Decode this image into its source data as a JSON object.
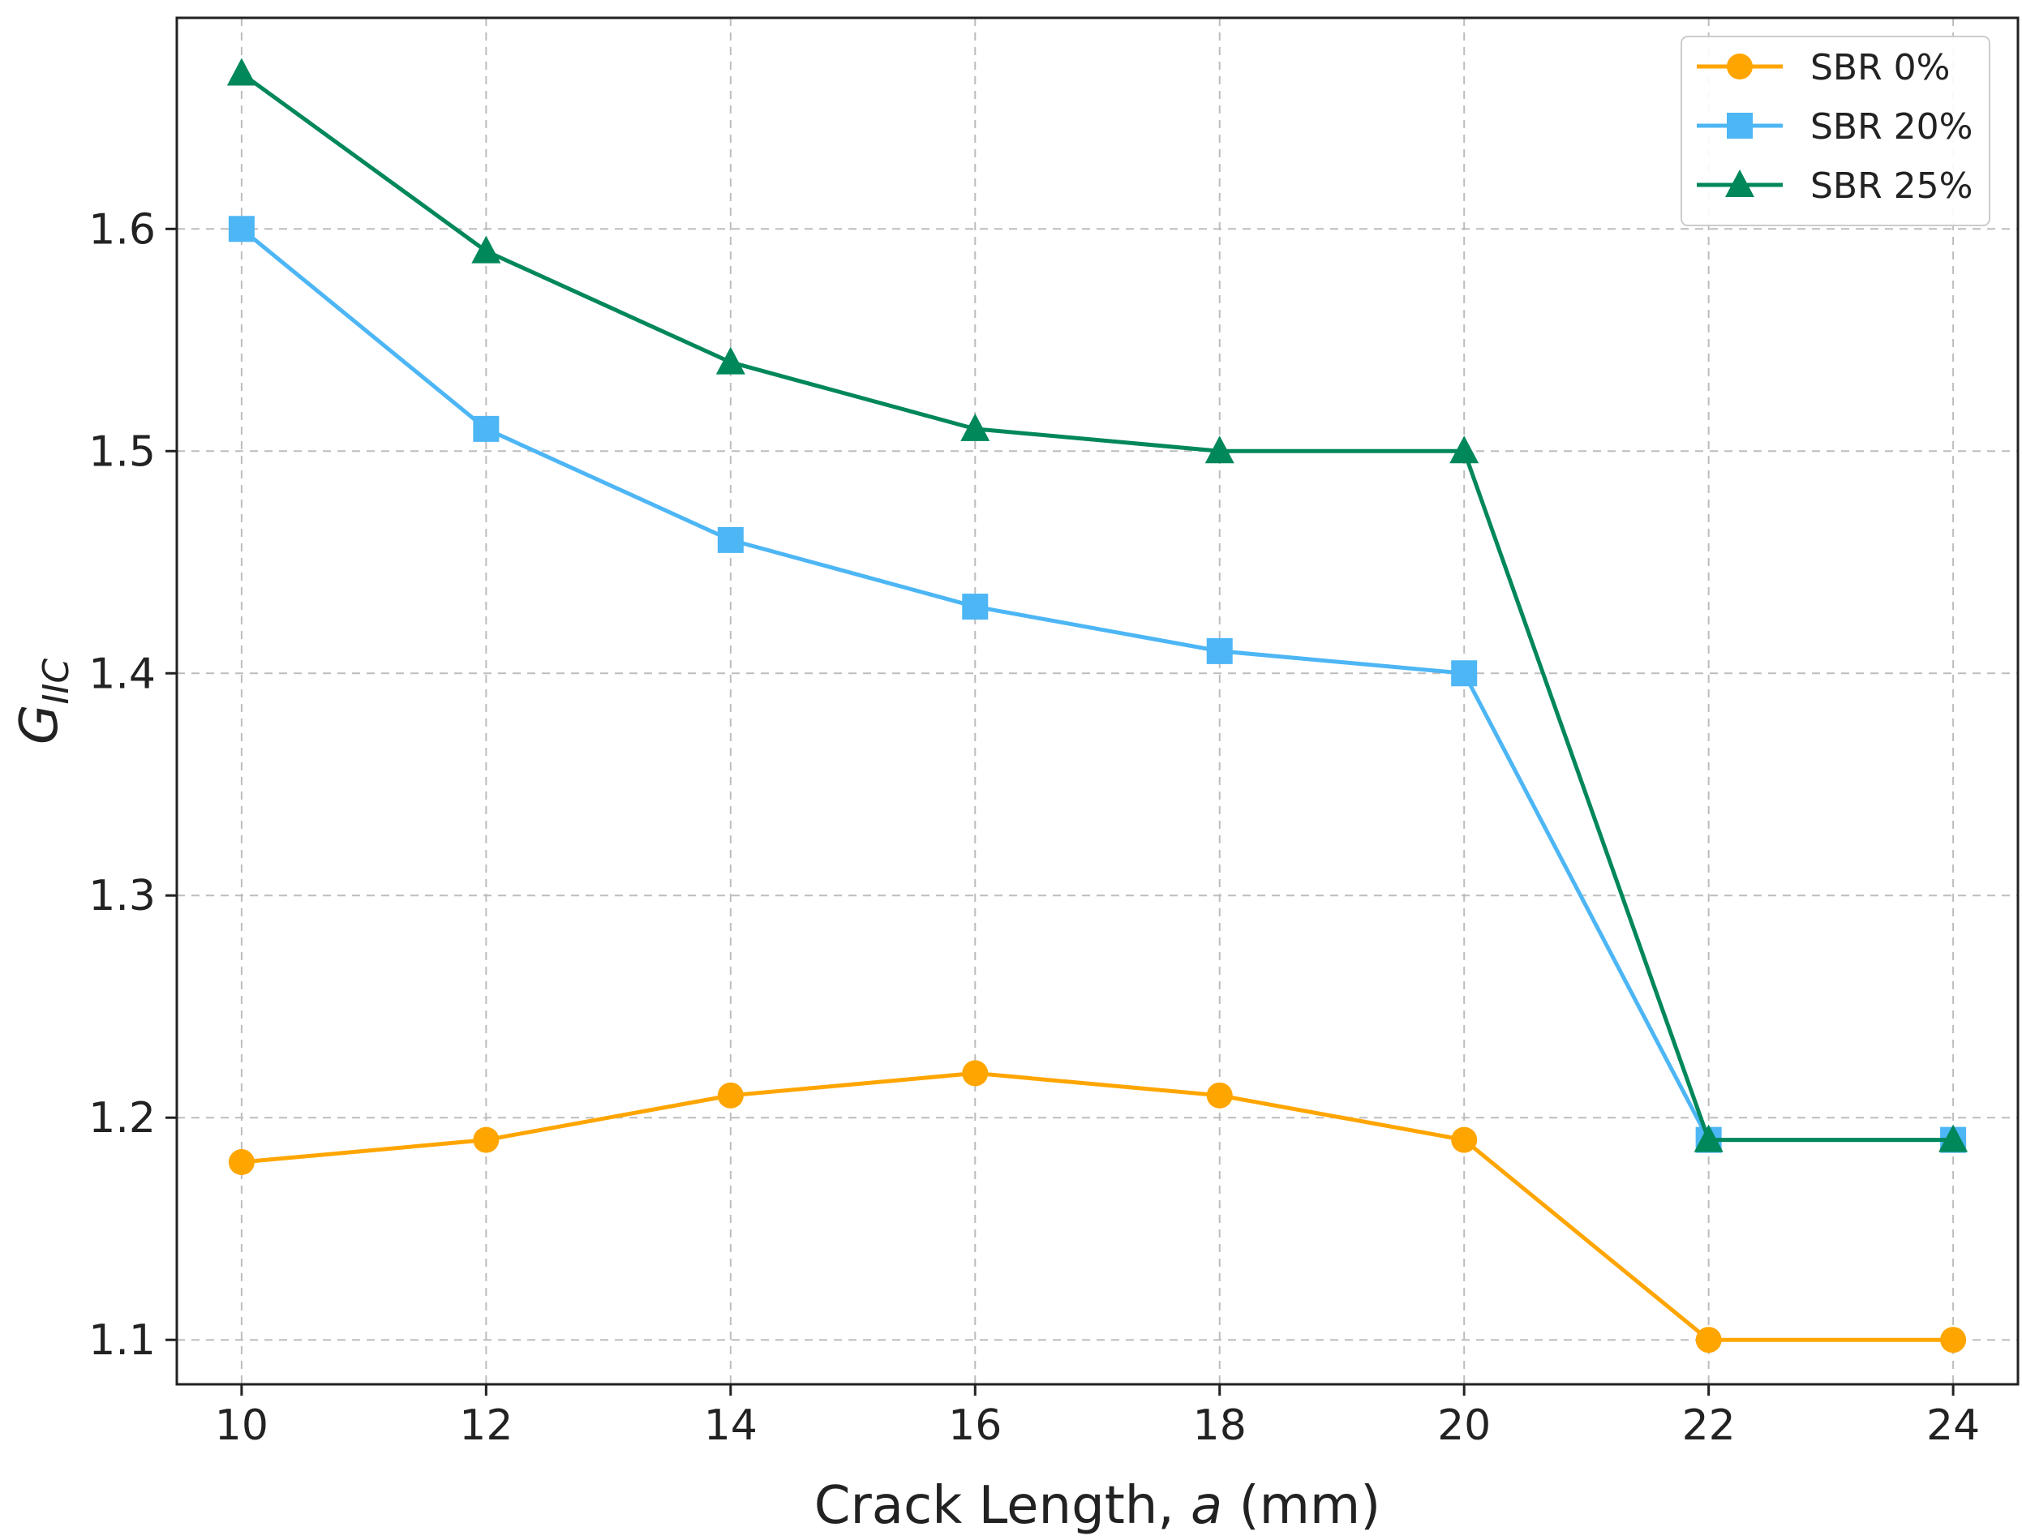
{
  "chart_data": {
    "type": "line",
    "title": "",
    "xlabel": "Crack Length, a (mm)",
    "xlabel_parts": {
      "before": "Crack Length, ",
      "var": "a",
      "after": " (mm)"
    },
    "ylabel": "G_IIC",
    "ylabel_parts": {
      "main": "G",
      "sub": "IIC"
    },
    "x": [
      10,
      12,
      14,
      16,
      18,
      20,
      22,
      24
    ],
    "xlim": [
      9.47,
      24.53
    ],
    "ylim": [
      1.08,
      1.695
    ],
    "xticks": [
      "10",
      "12",
      "14",
      "16",
      "18",
      "20",
      "22",
      "24"
    ],
    "yticks": [
      "1.1",
      "1.2",
      "1.3",
      "1.4",
      "1.5",
      "1.6"
    ],
    "grid": true,
    "legend_position": "top-right",
    "series": [
      {
        "name": "SBR 0%",
        "marker": "circle",
        "color": "#FFA500",
        "values": [
          1.18,
          1.19,
          1.21,
          1.22,
          1.21,
          1.19,
          1.1,
          1.1
        ]
      },
      {
        "name": "SBR 20%",
        "marker": "square",
        "color": "#4DB6F5",
        "values": [
          1.6,
          1.51,
          1.46,
          1.43,
          1.41,
          1.4,
          1.19,
          1.19
        ]
      },
      {
        "name": "SBR 25%",
        "marker": "triangle",
        "color": "#00875A",
        "values": [
          1.67,
          1.59,
          1.54,
          1.51,
          1.5,
          1.5,
          1.19,
          1.19
        ]
      }
    ]
  }
}
